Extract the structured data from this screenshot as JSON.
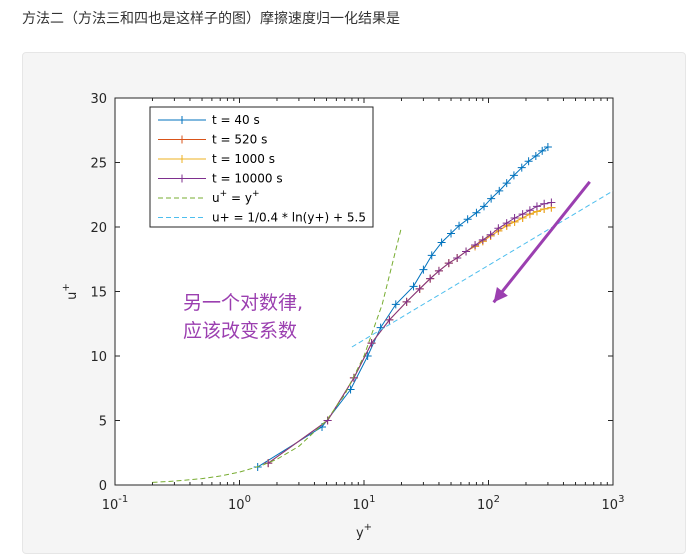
{
  "caption": "方法二（方法三和四也是这样子的图）摩擦速度归一化结果是",
  "chart_data": {
    "type": "line",
    "xscale": "log",
    "xlim": [
      0.1,
      1000
    ],
    "ylim": [
      0,
      30
    ],
    "xlabel": "y",
    "xlabel_sup": "+",
    "ylabel": "u",
    "ylabel_sup": "+",
    "xticks": [
      0.1,
      1,
      10,
      100,
      1000
    ],
    "xtick_labels": [
      {
        "base": "10",
        "exp": "-1"
      },
      {
        "base": "10",
        "exp": "0"
      },
      {
        "base": "10",
        "exp": "1"
      },
      {
        "base": "10",
        "exp": "2"
      },
      {
        "base": "10",
        "exp": "3"
      }
    ],
    "yticks": [
      0,
      5,
      10,
      15,
      20,
      25,
      30
    ],
    "legend_position": "top-left",
    "series": [
      {
        "name": "t = 40 s",
        "color": "#0072bd",
        "style": "solid",
        "marker": "+",
        "x": [
          1.4,
          4.6,
          7.8,
          10.7,
          13.6,
          18,
          25,
          30,
          35,
          42,
          50,
          58,
          68,
          80,
          92,
          105,
          122,
          140,
          160,
          185,
          210,
          240,
          270,
          300
        ],
        "y": [
          1.4,
          4.5,
          7.4,
          10.0,
          12.2,
          14.0,
          15.4,
          16.7,
          17.8,
          18.8,
          19.5,
          20.1,
          20.6,
          21.1,
          21.6,
          22.2,
          22.8,
          23.4,
          24.0,
          24.6,
          25.1,
          25.5,
          25.9,
          26.2
        ]
      },
      {
        "name": "t = 520 s",
        "color": "#d95319",
        "style": "solid",
        "marker": "+",
        "x": [
          1.7,
          5.1,
          8.3,
          11.5,
          16,
          22,
          28,
          34,
          40,
          48,
          56,
          66,
          78,
          90,
          104,
          120,
          140,
          162,
          188,
          215,
          245,
          280,
          320
        ],
        "y": [
          1.7,
          5.0,
          8.3,
          11.0,
          12.8,
          14.2,
          15.2,
          16.0,
          16.6,
          17.2,
          17.6,
          18.1,
          18.5,
          18.9,
          19.3,
          19.7,
          20.1,
          20.4,
          20.7,
          21.0,
          21.2,
          21.4,
          21.5
        ]
      },
      {
        "name": "t = 1000 s",
        "color": "#edb120",
        "style": "solid",
        "marker": "+",
        "x": [
          1.7,
          5.1,
          8.3,
          11.5,
          16,
          22,
          28,
          34,
          40,
          48,
          56,
          66,
          78,
          90,
          104,
          120,
          140,
          162,
          188,
          215,
          245,
          280,
          320
        ],
        "y": [
          1.7,
          5.0,
          8.3,
          11.0,
          12.8,
          14.2,
          15.2,
          16.0,
          16.6,
          17.2,
          17.6,
          18.1,
          18.5,
          18.9,
          19.3,
          19.7,
          20.1,
          20.4,
          20.7,
          21.0,
          21.2,
          21.4,
          21.5
        ]
      },
      {
        "name": "t = 10000 s",
        "color": "#7e2f8e",
        "style": "solid",
        "marker": "+",
        "x": [
          1.7,
          5.1,
          8.3,
          11.5,
          16,
          22,
          28,
          34,
          40,
          48,
          56,
          66,
          78,
          90,
          104,
          120,
          140,
          162,
          188,
          215,
          245,
          280,
          320
        ],
        "y": [
          1.7,
          5.0,
          8.3,
          11.0,
          12.8,
          14.2,
          15.2,
          16.0,
          16.6,
          17.2,
          17.6,
          18.1,
          18.6,
          19.0,
          19.4,
          19.9,
          20.3,
          20.7,
          21.0,
          21.3,
          21.6,
          21.8,
          21.9
        ]
      },
      {
        "name": "u+ = y+",
        "legend_base": "u",
        "legend_mid": " = y",
        "legend_sup": "+",
        "color": "#77ac30",
        "style": "dashed",
        "x": [
          0.2,
          0.3,
          0.5,
          0.7,
          1,
          1.5,
          2,
          3,
          5,
          7,
          10,
          14,
          20
        ],
        "y": [
          0.2,
          0.3,
          0.5,
          0.7,
          1,
          1.5,
          2,
          3,
          5,
          7,
          10,
          14,
          20
        ]
      },
      {
        "name": "u+ = 1/0.4 * ln(y+) + 5.5",
        "color": "#4dbeee",
        "style": "dashed",
        "x": [
          8,
          1000
        ],
        "y": [
          10.7,
          22.8
        ]
      }
    ],
    "annotation": {
      "lines": [
        "另一个对数律,",
        "应该改变系数"
      ],
      "color": "#9b3fb0",
      "arrow_from": [
        110,
        15.4
      ],
      "arrow_to": [
        650,
        23.5
      ]
    }
  }
}
